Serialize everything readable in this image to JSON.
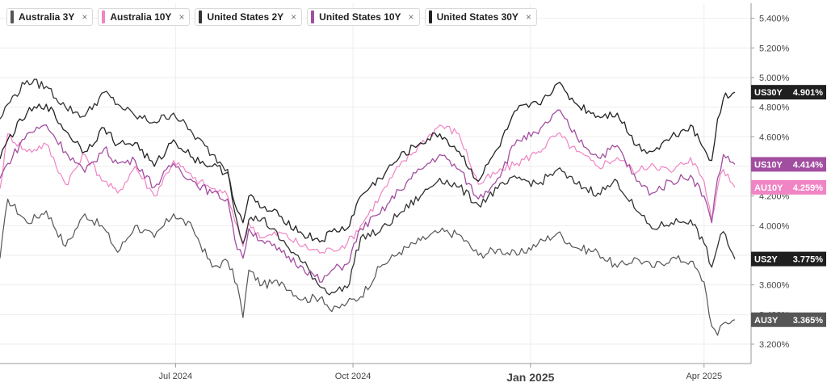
{
  "legend": [
    {
      "label": "Australia 3Y",
      "color": "#555555"
    },
    {
      "label": "Australia 10Y",
      "color": "#f084c4"
    },
    {
      "label": "United States 2Y",
      "color": "#333333"
    },
    {
      "label": "United States 10Y",
      "color": "#a24ea0"
    },
    {
      "label": "United States 30Y",
      "color": "#222222"
    }
  ],
  "close_glyph": "×",
  "chart_data": {
    "type": "line",
    "x_range": [
      "2024-04-01",
      "2025-04-17"
    ],
    "ylim": [
      3.1,
      5.5
    ],
    "y_ticks": [
      "3.200%",
      "3.400%",
      "3.600%",
      "3.800%",
      "4.000%",
      "4.200%",
      "4.400%",
      "4.600%",
      "4.800%",
      "5.000%",
      "5.200%",
      "5.400%"
    ],
    "x_ticks": [
      {
        "date": "2024-07-01",
        "label": "Jul 2024",
        "bold": false
      },
      {
        "date": "2024-10-01",
        "label": "Oct 2024",
        "bold": false
      },
      {
        "date": "2025-01-01",
        "label": "Jan 2025",
        "bold": true
      },
      {
        "date": "2025-04-01",
        "label": "Apr 2025",
        "bold": false
      }
    ],
    "grid": true,
    "series": [
      {
        "name": "Australia 3Y",
        "tag": "AU3Y",
        "last": "3.365%",
        "color": "#555555",
        "label_bg": "#555555",
        "width": 1.2,
        "points": [
          [
            "2024-04-01",
            3.78
          ],
          [
            "2024-04-05",
            4.18
          ],
          [
            "2024-04-15",
            4.02
          ],
          [
            "2024-04-25",
            4.1
          ],
          [
            "2024-05-05",
            3.86
          ],
          [
            "2024-05-15",
            4.08
          ],
          [
            "2024-05-25",
            3.98
          ],
          [
            "2024-06-01",
            3.82
          ],
          [
            "2024-06-10",
            4.0
          ],
          [
            "2024-06-20",
            3.92
          ],
          [
            "2024-06-30",
            4.08
          ],
          [
            "2024-07-10",
            3.98
          ],
          [
            "2024-07-20",
            3.72
          ],
          [
            "2024-07-28",
            3.76
          ],
          [
            "2024-08-02",
            3.6
          ],
          [
            "2024-08-05",
            3.38
          ],
          [
            "2024-08-08",
            3.7
          ],
          [
            "2024-08-15",
            3.6
          ],
          [
            "2024-08-25",
            3.62
          ],
          [
            "2024-09-05",
            3.5
          ],
          [
            "2024-09-15",
            3.52
          ],
          [
            "2024-09-20",
            3.42
          ],
          [
            "2024-09-28",
            3.48
          ],
          [
            "2024-10-05",
            3.52
          ],
          [
            "2024-10-15",
            3.72
          ],
          [
            "2024-10-25",
            3.82
          ],
          [
            "2024-11-05",
            3.9
          ],
          [
            "2024-11-15",
            3.96
          ],
          [
            "2024-11-25",
            3.94
          ],
          [
            "2024-12-05",
            3.8
          ],
          [
            "2024-12-15",
            3.84
          ],
          [
            "2024-12-25",
            3.8
          ],
          [
            "2025-01-05",
            3.88
          ],
          [
            "2025-01-15",
            3.95
          ],
          [
            "2025-01-25",
            3.85
          ],
          [
            "2025-02-05",
            3.82
          ],
          [
            "2025-02-15",
            3.72
          ],
          [
            "2025-02-25",
            3.78
          ],
          [
            "2025-03-05",
            3.72
          ],
          [
            "2025-03-15",
            3.78
          ],
          [
            "2025-03-25",
            3.76
          ],
          [
            "2025-04-01",
            3.62
          ],
          [
            "2025-04-05",
            3.32
          ],
          [
            "2025-04-08",
            3.26
          ],
          [
            "2025-04-11",
            3.34
          ],
          [
            "2025-04-17",
            3.365
          ]
        ]
      },
      {
        "name": "Australia 10Y",
        "tag": "AU10Y",
        "last": "4.259%",
        "color": "#f084c4",
        "label_bg": "#f084c4",
        "width": 1.2,
        "points": [
          [
            "2024-04-01",
            4.25
          ],
          [
            "2024-04-05",
            4.62
          ],
          [
            "2024-04-15",
            4.5
          ],
          [
            "2024-04-25",
            4.55
          ],
          [
            "2024-05-05",
            4.28
          ],
          [
            "2024-05-15",
            4.48
          ],
          [
            "2024-05-25",
            4.3
          ],
          [
            "2024-06-01",
            4.22
          ],
          [
            "2024-06-10",
            4.4
          ],
          [
            "2024-06-20",
            4.2
          ],
          [
            "2024-06-30",
            4.44
          ],
          [
            "2024-07-10",
            4.32
          ],
          [
            "2024-07-20",
            4.25
          ],
          [
            "2024-07-28",
            4.2
          ],
          [
            "2024-08-02",
            4.0
          ],
          [
            "2024-08-05",
            3.86
          ],
          [
            "2024-08-08",
            4.02
          ],
          [
            "2024-08-15",
            3.92
          ],
          [
            "2024-08-25",
            3.95
          ],
          [
            "2024-09-05",
            3.86
          ],
          [
            "2024-09-15",
            3.82
          ],
          [
            "2024-09-20",
            3.84
          ],
          [
            "2024-09-28",
            3.88
          ],
          [
            "2024-10-05",
            4.0
          ],
          [
            "2024-10-15",
            4.2
          ],
          [
            "2024-10-25",
            4.4
          ],
          [
            "2024-11-05",
            4.55
          ],
          [
            "2024-11-15",
            4.68
          ],
          [
            "2024-11-25",
            4.62
          ],
          [
            "2024-12-05",
            4.28
          ],
          [
            "2024-12-15",
            4.36
          ],
          [
            "2024-12-25",
            4.42
          ],
          [
            "2025-01-05",
            4.5
          ],
          [
            "2025-01-15",
            4.62
          ],
          [
            "2025-01-25",
            4.5
          ],
          [
            "2025-02-05",
            4.4
          ],
          [
            "2025-02-15",
            4.46
          ],
          [
            "2025-02-25",
            4.36
          ],
          [
            "2025-03-05",
            4.42
          ],
          [
            "2025-03-15",
            4.36
          ],
          [
            "2025-03-25",
            4.46
          ],
          [
            "2025-04-01",
            4.3
          ],
          [
            "2025-04-05",
            4.04
          ],
          [
            "2025-04-08",
            4.26
          ],
          [
            "2025-04-11",
            4.38
          ],
          [
            "2025-04-17",
            4.259
          ]
        ]
      },
      {
        "name": "United States 2Y",
        "tag": "US2Y",
        "last": "3.775%",
        "color": "#333333",
        "label_bg": "#1f1f1f",
        "width": 1.3,
        "points": [
          [
            "2024-04-01",
            4.72
          ],
          [
            "2024-04-05",
            4.82
          ],
          [
            "2024-04-15",
            4.98
          ],
          [
            "2024-04-25",
            4.94
          ],
          [
            "2024-05-05",
            4.8
          ],
          [
            "2024-05-15",
            4.74
          ],
          [
            "2024-05-25",
            4.9
          ],
          [
            "2024-06-01",
            4.82
          ],
          [
            "2024-06-10",
            4.74
          ],
          [
            "2024-06-20",
            4.7
          ],
          [
            "2024-06-30",
            4.76
          ],
          [
            "2024-07-10",
            4.62
          ],
          [
            "2024-07-20",
            4.48
          ],
          [
            "2024-07-28",
            4.38
          ],
          [
            "2024-08-02",
            4.02
          ],
          [
            "2024-08-05",
            3.88
          ],
          [
            "2024-08-08",
            4.04
          ],
          [
            "2024-08-15",
            4.05
          ],
          [
            "2024-08-25",
            3.9
          ],
          [
            "2024-09-05",
            3.75
          ],
          [
            "2024-09-15",
            3.58
          ],
          [
            "2024-09-20",
            3.55
          ],
          [
            "2024-09-28",
            3.58
          ],
          [
            "2024-10-05",
            3.92
          ],
          [
            "2024-10-15",
            3.96
          ],
          [
            "2024-10-25",
            4.08
          ],
          [
            "2024-11-05",
            4.2
          ],
          [
            "2024-11-15",
            4.32
          ],
          [
            "2024-11-25",
            4.26
          ],
          [
            "2024-12-05",
            4.14
          ],
          [
            "2024-12-15",
            4.25
          ],
          [
            "2024-12-25",
            4.32
          ],
          [
            "2025-01-05",
            4.28
          ],
          [
            "2025-01-15",
            4.38
          ],
          [
            "2025-01-25",
            4.28
          ],
          [
            "2025-02-05",
            4.22
          ],
          [
            "2025-02-15",
            4.3
          ],
          [
            "2025-02-25",
            4.1
          ],
          [
            "2025-03-05",
            3.98
          ],
          [
            "2025-03-15",
            4.02
          ],
          [
            "2025-03-25",
            4.04
          ],
          [
            "2025-04-01",
            3.88
          ],
          [
            "2025-04-05",
            3.72
          ],
          [
            "2025-04-08",
            3.86
          ],
          [
            "2025-04-11",
            3.96
          ],
          [
            "2025-04-17",
            3.775
          ]
        ]
      },
      {
        "name": "United States 10Y",
        "tag": "US10Y",
        "last": "4.414%",
        "color": "#a24ea0",
        "label_bg": "#a24ea0",
        "width": 1.3,
        "points": [
          [
            "2024-04-01",
            4.32
          ],
          [
            "2024-04-05",
            4.42
          ],
          [
            "2024-04-15",
            4.62
          ],
          [
            "2024-04-25",
            4.68
          ],
          [
            "2024-05-05",
            4.5
          ],
          [
            "2024-05-15",
            4.36
          ],
          [
            "2024-05-25",
            4.52
          ],
          [
            "2024-06-01",
            4.42
          ],
          [
            "2024-06-10",
            4.44
          ],
          [
            "2024-06-20",
            4.26
          ],
          [
            "2024-06-30",
            4.42
          ],
          [
            "2024-07-10",
            4.3
          ],
          [
            "2024-07-20",
            4.22
          ],
          [
            "2024-07-28",
            4.18
          ],
          [
            "2024-08-02",
            3.84
          ],
          [
            "2024-08-05",
            3.78
          ],
          [
            "2024-08-08",
            3.98
          ],
          [
            "2024-08-15",
            3.9
          ],
          [
            "2024-08-25",
            3.82
          ],
          [
            "2024-09-05",
            3.72
          ],
          [
            "2024-09-15",
            3.62
          ],
          [
            "2024-09-20",
            3.7
          ],
          [
            "2024-09-28",
            3.74
          ],
          [
            "2024-10-05",
            3.98
          ],
          [
            "2024-10-15",
            4.08
          ],
          [
            "2024-10-25",
            4.24
          ],
          [
            "2024-11-05",
            4.38
          ],
          [
            "2024-11-15",
            4.48
          ],
          [
            "2024-11-25",
            4.38
          ],
          [
            "2024-12-05",
            4.18
          ],
          [
            "2024-12-15",
            4.32
          ],
          [
            "2024-12-25",
            4.58
          ],
          [
            "2025-01-05",
            4.62
          ],
          [
            "2025-01-15",
            4.78
          ],
          [
            "2025-01-25",
            4.6
          ],
          [
            "2025-02-05",
            4.46
          ],
          [
            "2025-02-15",
            4.54
          ],
          [
            "2025-02-25",
            4.3
          ],
          [
            "2025-03-05",
            4.22
          ],
          [
            "2025-03-15",
            4.3
          ],
          [
            "2025-03-25",
            4.34
          ],
          [
            "2025-04-01",
            4.2
          ],
          [
            "2025-04-05",
            4.02
          ],
          [
            "2025-04-08",
            4.32
          ],
          [
            "2025-04-11",
            4.48
          ],
          [
            "2025-04-17",
            4.414
          ]
        ]
      },
      {
        "name": "United States 30Y",
        "tag": "US30Y",
        "last": "4.901%",
        "color": "#222222",
        "label_bg": "#1f1f1f",
        "width": 1.3,
        "points": [
          [
            "2024-04-01",
            4.45
          ],
          [
            "2024-04-05",
            4.58
          ],
          [
            "2024-04-15",
            4.76
          ],
          [
            "2024-04-25",
            4.82
          ],
          [
            "2024-05-05",
            4.64
          ],
          [
            "2024-05-15",
            4.5
          ],
          [
            "2024-05-25",
            4.66
          ],
          [
            "2024-06-01",
            4.55
          ],
          [
            "2024-06-10",
            4.56
          ],
          [
            "2024-06-20",
            4.4
          ],
          [
            "2024-06-30",
            4.58
          ],
          [
            "2024-07-10",
            4.46
          ],
          [
            "2024-07-20",
            4.4
          ],
          [
            "2024-07-28",
            4.36
          ],
          [
            "2024-08-02",
            4.1
          ],
          [
            "2024-08-05",
            4.02
          ],
          [
            "2024-08-08",
            4.2
          ],
          [
            "2024-08-15",
            4.12
          ],
          [
            "2024-08-25",
            4.06
          ],
          [
            "2024-09-05",
            3.94
          ],
          [
            "2024-09-15",
            3.9
          ],
          [
            "2024-09-20",
            3.96
          ],
          [
            "2024-09-28",
            3.98
          ],
          [
            "2024-10-05",
            4.2
          ],
          [
            "2024-10-15",
            4.32
          ],
          [
            "2024-10-25",
            4.46
          ],
          [
            "2024-11-05",
            4.56
          ],
          [
            "2024-11-15",
            4.62
          ],
          [
            "2024-11-25",
            4.5
          ],
          [
            "2024-12-05",
            4.3
          ],
          [
            "2024-12-15",
            4.52
          ],
          [
            "2024-12-25",
            4.78
          ],
          [
            "2025-01-05",
            4.82
          ],
          [
            "2025-01-15",
            4.96
          ],
          [
            "2025-01-25",
            4.82
          ],
          [
            "2025-02-05",
            4.74
          ],
          [
            "2025-02-15",
            4.76
          ],
          [
            "2025-02-25",
            4.54
          ],
          [
            "2025-03-05",
            4.5
          ],
          [
            "2025-03-15",
            4.6
          ],
          [
            "2025-03-25",
            4.68
          ],
          [
            "2025-04-01",
            4.52
          ],
          [
            "2025-04-05",
            4.44
          ],
          [
            "2025-04-08",
            4.72
          ],
          [
            "2025-04-11",
            4.86
          ],
          [
            "2025-04-17",
            4.901
          ]
        ]
      }
    ]
  }
}
